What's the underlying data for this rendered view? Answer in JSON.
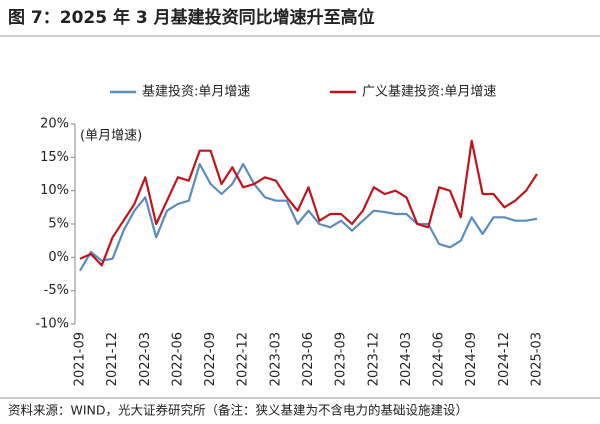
{
  "chart_data": {
    "type": "line",
    "title": "图 7：2025 年 3 月基建投资同比增速升至高位",
    "y_label": "(单月增速)",
    "source": "资料来源：WIND，光大证券研究所（备注：狭义基建为不含电力的基础设施建设）",
    "categories": [
      "2021-09",
      null,
      null,
      "2021-12",
      null,
      null,
      "2022-03",
      null,
      null,
      "2022-06",
      null,
      null,
      "2022-09",
      null,
      null,
      "2022-12",
      null,
      null,
      "2023-03",
      null,
      null,
      "2023-06",
      null,
      null,
      "2023-09",
      null,
      null,
      "2023-12",
      null,
      null,
      "2024-03",
      null,
      null,
      "2024-06",
      null,
      null,
      "2024-09",
      null,
      null,
      "2024-12",
      null,
      null,
      "2025-03"
    ],
    "series": [
      {
        "name": "基建投资:单月增速",
        "color": "#5a8cbc",
        "values": [
          -2,
          0.8,
          -0.5,
          -0.2,
          4,
          7,
          9,
          3,
          7,
          8,
          8.5,
          14,
          11,
          9.5,
          11,
          14,
          11,
          9,
          8.5,
          8.5,
          5,
          7,
          5,
          4.5,
          5.5,
          4,
          5.5,
          7,
          6.8,
          6.5,
          6.5,
          5,
          5,
          2,
          1.5,
          2.5,
          6,
          3.5,
          6,
          6,
          5.5,
          5.5,
          5.8
        ]
      },
      {
        "name": "广义基建投资:单月增速",
        "color": "#c0141c",
        "values": [
          -0.2,
          0.5,
          -1.2,
          3,
          5.5,
          8,
          12,
          5,
          8.5,
          12,
          11.5,
          16,
          16,
          11,
          13.5,
          10.5,
          11,
          12,
          11.5,
          9,
          7,
          10.5,
          5.5,
          6.5,
          6.5,
          5,
          7,
          10.5,
          9.5,
          10,
          9,
          5,
          4.5,
          10.5,
          10,
          6,
          17.5,
          9.5,
          9.5,
          7.5,
          8.5,
          10,
          12.5
        ]
      }
    ],
    "ylim": [
      -10,
      20
    ],
    "yticks": [
      {
        "value": -10,
        "label": "-10%"
      },
      {
        "value": -5,
        "label": "-5%"
      },
      {
        "value": 0,
        "label": "0%"
      },
      {
        "value": 5,
        "label": "5%"
      },
      {
        "value": 10,
        "label": "10%"
      },
      {
        "value": 15,
        "label": "15%"
      },
      {
        "value": 20,
        "label": "20%"
      }
    ],
    "grid": false
  }
}
